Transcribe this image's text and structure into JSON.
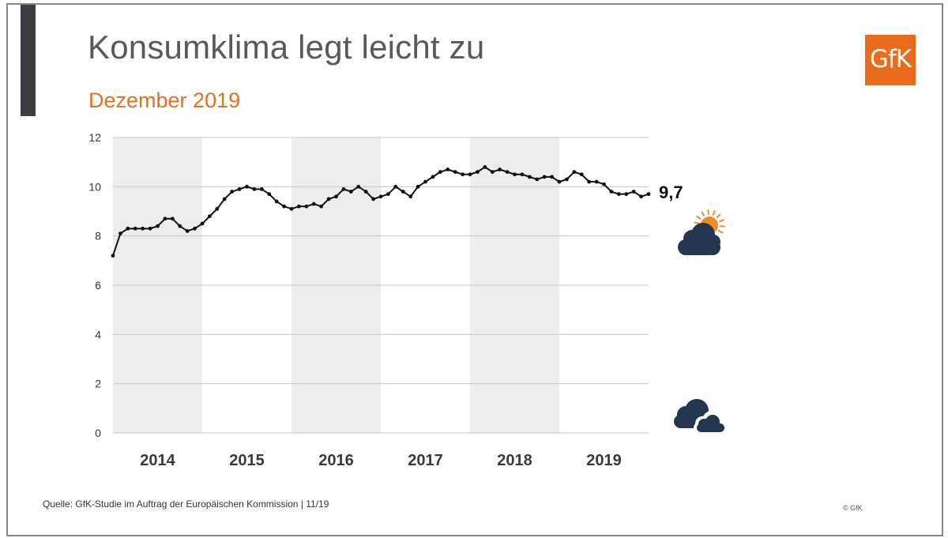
{
  "slide": {
    "title": "Konsumklima legt leicht zu",
    "subtitle": "Dezember 2019",
    "logo_text": "GfK",
    "source": "Quelle: GfK-Studie im Auftrag der Europäischen Kommission | 11/19",
    "copyright": "© GfK"
  },
  "colors": {
    "accent": "#e2701d",
    "title": "#555a5f",
    "line": "#111111",
    "band": "#ededed",
    "gridline": "#c8c8c8",
    "cloud": "#253650",
    "sun": "#f08a24"
  },
  "icons": {
    "upper": "sun-behind-cloud-icon",
    "lower": "dark-clouds-icon"
  },
  "chart_data": {
    "type": "line",
    "title": "",
    "xlabel": "",
    "ylabel": "",
    "ylim": [
      0,
      12
    ],
    "yticks": [
      "0",
      "2",
      "4",
      "6",
      "8",
      "10",
      "12"
    ],
    "year_labels": [
      "2014",
      "2015",
      "2016",
      "2017",
      "2018",
      "2019"
    ],
    "shaded_years": [
      "2014",
      "2016",
      "2018"
    ],
    "grid": true,
    "end_label": "9,7",
    "series": [
      {
        "values": [
          7.2,
          8.1,
          8.3,
          8.3,
          8.3,
          8.3,
          8.4,
          8.7,
          8.7,
          8.4,
          8.2,
          8.3,
          8.5,
          8.8,
          9.1,
          9.5,
          9.8,
          9.9,
          10.0,
          9.9,
          9.9,
          9.7,
          9.4,
          9.2,
          9.1,
          9.2,
          9.2,
          9.3,
          9.2,
          9.5,
          9.6,
          9.9,
          9.8,
          10.0,
          9.8,
          9.5,
          9.6,
          9.7,
          10.0,
          9.8,
          9.6,
          10.0,
          10.2,
          10.4,
          10.6,
          10.7,
          10.6,
          10.5,
          10.5,
          10.6,
          10.8,
          10.6,
          10.7,
          10.6,
          10.5,
          10.5,
          10.4,
          10.3,
          10.4,
          10.4,
          10.2,
          10.3,
          10.6,
          10.5,
          10.2,
          10.2,
          10.1,
          9.8,
          9.7,
          9.7,
          9.8,
          9.6,
          9.7
        ]
      }
    ]
  }
}
